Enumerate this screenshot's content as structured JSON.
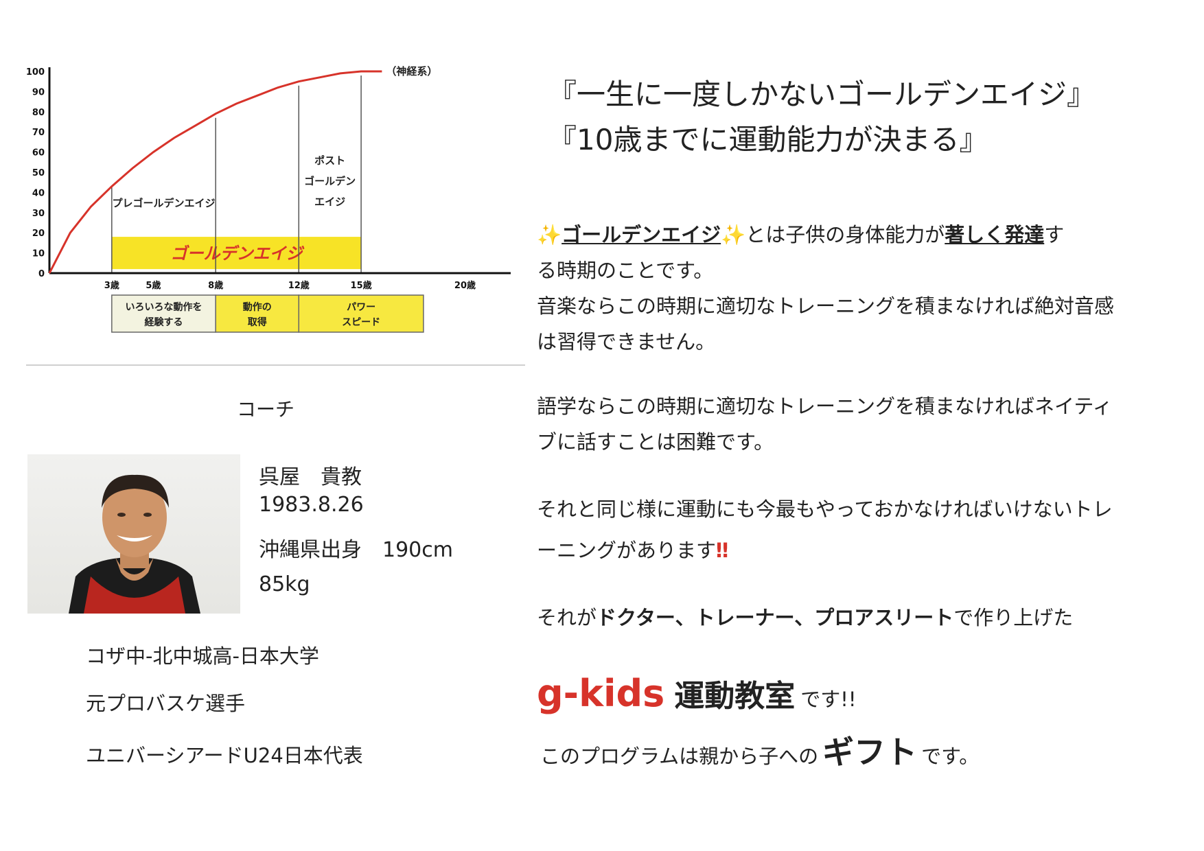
{
  "chart_data": {
    "type": "line",
    "y_ticks": [
      "100",
      "90",
      "80",
      "70",
      "60",
      "50",
      "40",
      "30",
      "20",
      "10",
      "0"
    ],
    "x_ticks": [
      {
        "label": "3歳",
        "x": 3
      },
      {
        "label": "5歳",
        "x": 5
      },
      {
        "label": "8歳",
        "x": 8
      },
      {
        "label": "12歳",
        "x": 12
      },
      {
        "label": "15歳",
        "x": 15
      },
      {
        "label": "20歳",
        "x": 20
      }
    ],
    "ylim": [
      0,
      100
    ],
    "xlim": [
      0,
      22
    ],
    "series": [
      {
        "name": "（神経系）",
        "color": "#d7332a",
        "x": [
          0,
          1,
          2,
          3,
          4,
          5,
          6,
          7,
          8,
          9,
          10,
          11,
          12,
          13,
          14,
          15,
          16
        ],
        "y": [
          0,
          20,
          33,
          43,
          52,
          60,
          67,
          73,
          79,
          84,
          88,
          92,
          95,
          97,
          99,
          100,
          100
        ]
      }
    ],
    "phases": [
      {
        "label": "プレゴールデンエイジ",
        "start": 3,
        "end": 8
      },
      {
        "label": "ポスト ゴールデン エイジ",
        "lines": [
          "ポスト",
          "ゴールデン",
          "エイジ"
        ],
        "start": 12,
        "end": 15
      }
    ],
    "band": {
      "label": "ゴールデンエイジ",
      "start": 3,
      "end": 15,
      "from": 2,
      "to": 18,
      "color": "#f7e326"
    },
    "boxes": [
      {
        "lines": [
          "いろいろな動作を",
          "経験する"
        ],
        "start": 3,
        "end": 8,
        "fill": "#f3f3e0"
      },
      {
        "lines": [
          "動作の",
          "取得"
        ],
        "start": 8,
        "end": 12,
        "fill": "#f7e840"
      },
      {
        "lines": [
          "パワー",
          "スピード"
        ],
        "start": 12,
        "end": 18,
        "fill": "#f7e840"
      }
    ]
  },
  "coach": {
    "heading": "コーチ",
    "name": "呉屋　貴教",
    "birthday": "1983.8.26",
    "origin_height": "沖縄県出身　190cm",
    "weight": "85kg",
    "career": [
      "コザ中-北中城高-日本大学",
      "元プロバスケ選手",
      "ユニバーシアードU24日本代表"
    ]
  },
  "slogans": [
    "『一生に一度しかないゴールデンエイジ』",
    "『10歳までに運動能力が決まる』"
  ],
  "intro": {
    "sparkle": "✨",
    "golden_age": "ゴールデンエイジ",
    "mid": "とは子供の身体能力が",
    "highlight": "著しく発達",
    "end1": "す",
    "line2": "る時期のことです。",
    "music": "音楽ならこの時期に適切なトレーニングを積まなければ絶対音感は習得できません。"
  },
  "language": "語学ならこの時期に適切なトレーニングを積まなければネイティブに話すことは困難です。",
  "sports": {
    "text": "それと同じ様に運動にも今最もやっておかなければいけないトレーニングがあります",
    "mark": "‼"
  },
  "made_by": {
    "pre": "それが",
    "bold": "ドクター、トレーナー、プロアスリート",
    "post": "で作り上げた"
  },
  "brand": {
    "name": "g-kids",
    "kanji": "運動教室",
    "tail": "です!!"
  },
  "gift": {
    "pre": "このプログラムは親から子への",
    "bold": "ギフト",
    "post": "です。"
  }
}
